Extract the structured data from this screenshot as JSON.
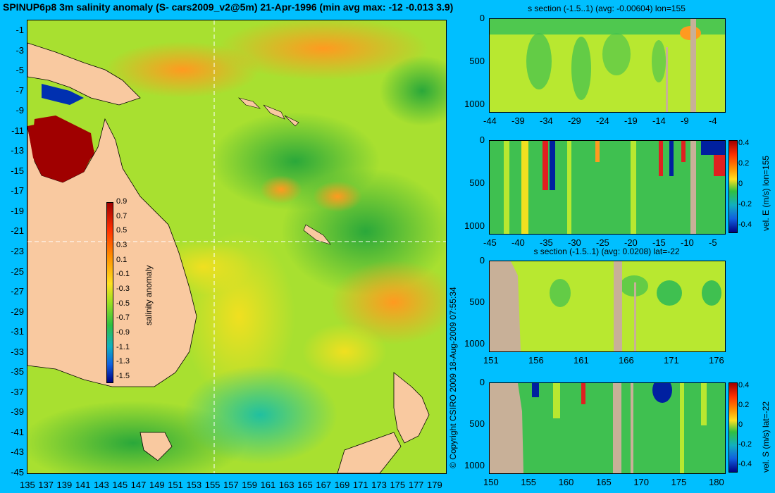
{
  "title": "SPINUP6p8 3m salinity anomaly (S- cars2009_v2@5m) 21-Apr-1996 (min avg max: -12 -0.013 3.9)",
  "copyright": "© Copyright CSIRO 2009   18-Aug-2009 07:55:34",
  "map": {
    "lat_labels": [
      "-1",
      "-3",
      "-5",
      "-7",
      "-9",
      "-11",
      "-13",
      "-15",
      "-17",
      "-19",
      "-21",
      "-23",
      "-25",
      "-27",
      "-29",
      "-31",
      "-33",
      "-35",
      "-37",
      "-39",
      "-41",
      "-43",
      "-45"
    ],
    "lon_labels": [
      "135",
      "137",
      "139",
      "141",
      "143",
      "145",
      "147",
      "149",
      "151",
      "153",
      "155",
      "157",
      "159",
      "161",
      "163",
      "165",
      "167",
      "169",
      "171",
      "173",
      "175",
      "177",
      "179"
    ],
    "colorbar": {
      "label": "salinity anomaly",
      "ticks": [
        "0.9",
        "0.7",
        "0.5",
        "0.3",
        "0.1",
        "-0.1",
        "-0.3",
        "-0.5",
        "-0.7",
        "-0.9",
        "-1.1",
        "-1.3",
        "-1.5"
      ]
    },
    "colors": {
      "land": "#f9c9a0",
      "ocean_mid": "#9ee02e",
      "accent_high": "#a00000",
      "accent_low": "#00108a"
    }
  },
  "sections": [
    {
      "title": "s section (-1.5..1) (avg: -0.00604) lon=155",
      "x_ticks": [
        "-44",
        "-39",
        "-34",
        "-29",
        "-24",
        "-19",
        "-14",
        "-9",
        "-4"
      ],
      "y_ticks": [
        "0",
        "500",
        "1000"
      ],
      "colorbar": null
    },
    {
      "title": "",
      "x_ticks": [
        "-45",
        "-40",
        "-35",
        "-30",
        "-25",
        "-20",
        "-15",
        "-10",
        "-5"
      ],
      "y_ticks": [
        "0",
        "500",
        "1000"
      ],
      "colorbar": {
        "label": "vel. E (m/s) lon=155",
        "ticks": [
          "0.4",
          "0.2",
          "0",
          "-0.2",
          "-0.4"
        ]
      }
    },
    {
      "title": "s section (-1.5..1) (avg: 0.0208) lat=-22",
      "x_ticks": [
        "151",
        "156",
        "161",
        "166",
        "171",
        "176"
      ],
      "y_ticks": [
        "0",
        "500",
        "1000"
      ],
      "colorbar": null
    },
    {
      "title": "",
      "x_ticks": [
        "150",
        "155",
        "160",
        "165",
        "170",
        "175",
        "180"
      ],
      "y_ticks": [
        "0",
        "500",
        "1000"
      ],
      "colorbar": {
        "label": "vel. S (m/s) lat=-22",
        "ticks": [
          "0.4",
          "0.2",
          "0",
          "-0.2",
          "-0.4"
        ]
      }
    }
  ]
}
